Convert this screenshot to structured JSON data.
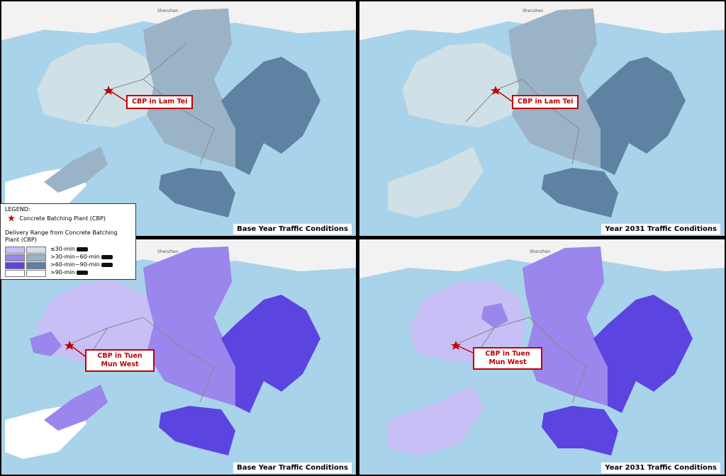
{
  "panels": [
    {
      "condition": "Base Year Traffic Conditions",
      "plant_label": "CBP in Lam Tei",
      "scheme": "blue"
    },
    {
      "condition": "Year 2031 Traffic Conditions",
      "plant_label": "CBP in Lam Tei",
      "scheme": "blue"
    },
    {
      "condition": "Base Year Traffic Conditions",
      "plant_label": "CBP in Tuen Mun West",
      "scheme": "purple"
    },
    {
      "condition": "Year 2031 Traffic Conditions",
      "plant_label": "CBP in Tuen Mun West",
      "scheme": "purple"
    }
  ],
  "map_label_city": "Shenzhen",
  "colors": {
    "water": "#a9d3ea",
    "land": "#f2f2f2",
    "blue": [
      "#cfe1e6",
      "#9bb3c6",
      "#5e82a2",
      "#ffffff"
    ],
    "purple": [
      "#c7bff5",
      "#9a86ec",
      "#5b44e0",
      "#ffffff"
    ],
    "callout_border": "#c00000",
    "plant_marker": "#c00000"
  },
  "legend": {
    "title": "LEGEND:",
    "plant_item": "Concrete Batching Plant (CBP)",
    "range_title": "Delivery Range from Concrete Batching Plant (CBP)",
    "ranges": [
      "≤30-min",
      ">30-min~60-min",
      ">60-min~90-min",
      ">90-min"
    ]
  }
}
